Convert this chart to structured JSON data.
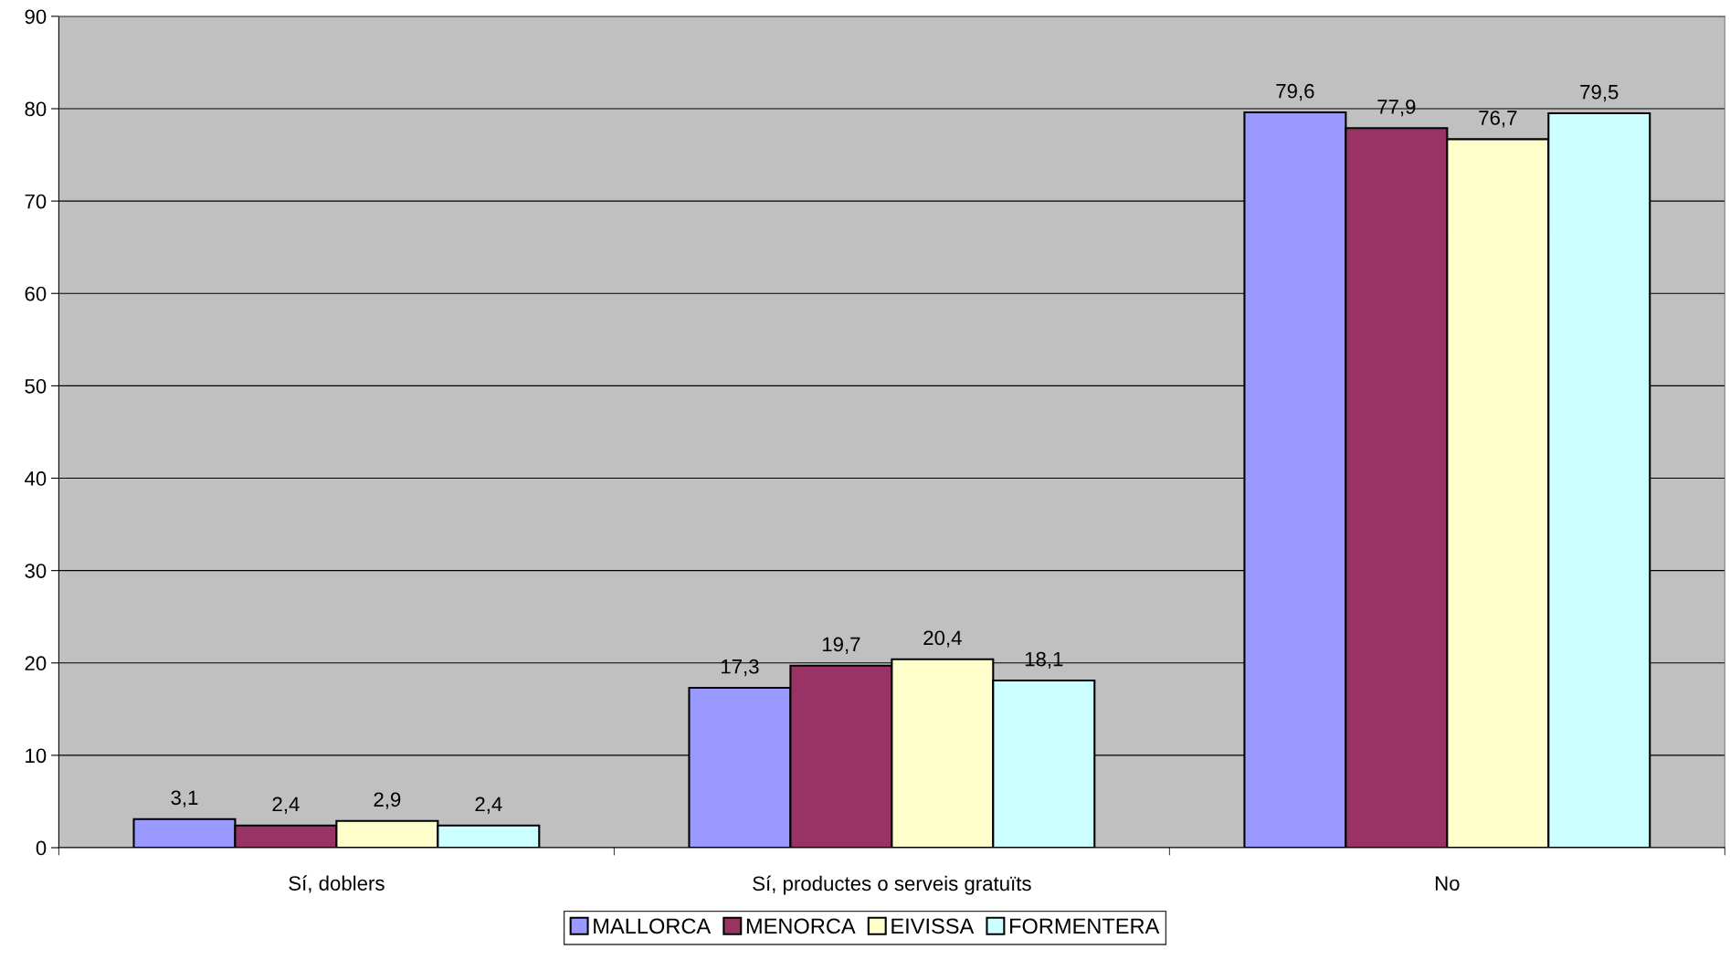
{
  "chart_data": {
    "type": "bar",
    "categories": [
      "Sí, doblers",
      "Sí, productes o serveis gratuïts",
      "No"
    ],
    "series": [
      {
        "name": "MALLORCA",
        "color": "#9999ff",
        "values": [
          3.1,
          17.3,
          79.6
        ],
        "value_labels": [
          "3,1",
          "17,3",
          "79,6"
        ]
      },
      {
        "name": "MENORCA",
        "color": "#993366",
        "values": [
          2.4,
          19.7,
          77.9
        ],
        "value_labels": [
          "2,4",
          "19,7",
          "77,9"
        ]
      },
      {
        "name": "EIVISSA",
        "color": "#ffffcc",
        "values": [
          2.9,
          20.4,
          76.7
        ],
        "value_labels": [
          "2,9",
          "20,4",
          "76,7"
        ]
      },
      {
        "name": "FORMENTERA",
        "color": "#ccffff",
        "values": [
          2.4,
          18.1,
          79.5
        ],
        "value_labels": [
          "2,4",
          "18,1",
          "79,5"
        ]
      }
    ],
    "ylim": [
      0,
      90
    ],
    "yticks": [
      0,
      10,
      20,
      30,
      40,
      50,
      60,
      70,
      80,
      90
    ],
    "grid": "y",
    "legend": "bottom"
  }
}
